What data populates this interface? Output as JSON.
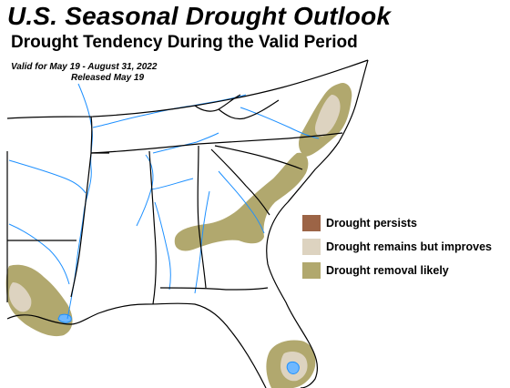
{
  "header": {
    "title": "U.S. Seasonal Drought Outlook",
    "subtitle": "Drought Tendency During the Valid Period",
    "valid": "Valid for May 19 - August 31, 2022",
    "released": "Released May 19"
  },
  "legend": {
    "items": [
      {
        "label": "Drought persists",
        "color": "#9c6446"
      },
      {
        "label": "Drought remains but improves",
        "color": "#ddd3c0"
      },
      {
        "label": "Drought removal likely",
        "color": "#b1a86e"
      }
    ]
  },
  "colors": {
    "state_border": "#000000",
    "river": "#1e90ff",
    "lake": "#6fb8ff"
  }
}
